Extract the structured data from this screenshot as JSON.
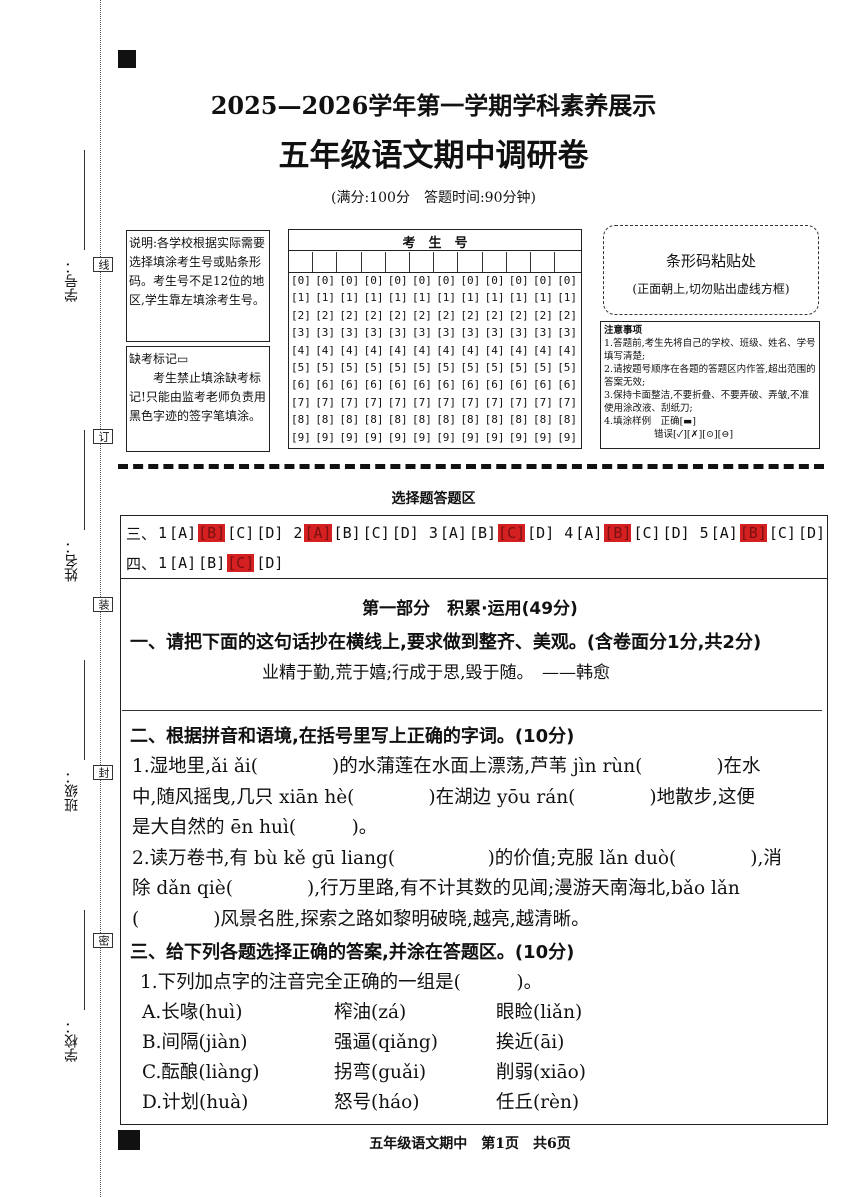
{
  "margin": {
    "labels": [
      "学号：",
      "姓名：",
      "班级：",
      "学校："
    ],
    "seal_chars": [
      "线",
      "订",
      "装",
      "封",
      "密"
    ]
  },
  "header": {
    "title": "2025—2026学年第一学期学科素养展示",
    "subtitle": "五年级语文期中调研卷",
    "score_info": "(满分:100分　答题时间:90分钟)"
  },
  "instructions": "说明:各学校根据实际需要选择填涂考生号或贴条形码。考生号不足12位的地区,学生靠左填涂考生号。",
  "exam_number": {
    "title": "考　生　号",
    "rows": [
      [
        "[0]",
        "[0]",
        "[0]",
        "[0]",
        "[0]",
        "[0]",
        "[0]",
        "[0]",
        "[0]",
        "[0]",
        "[0]",
        "[0]"
      ],
      [
        "[1]",
        "[1]",
        "[1]",
        "[1]",
        "[1]",
        "[1]",
        "[1]",
        "[1]",
        "[1]",
        "[1]",
        "[1]",
        "[1]"
      ],
      [
        "[2]",
        "[2]",
        "[2]",
        "[2]",
        "[2]",
        "[2]",
        "[2]",
        "[2]",
        "[2]",
        "[2]",
        "[2]",
        "[2]"
      ],
      [
        "[3]",
        "[3]",
        "[3]",
        "[3]",
        "[3]",
        "[3]",
        "[3]",
        "[3]",
        "[3]",
        "[3]",
        "[3]",
        "[3]"
      ],
      [
        "[4]",
        "[4]",
        "[4]",
        "[4]",
        "[4]",
        "[4]",
        "[4]",
        "[4]",
        "[4]",
        "[4]",
        "[4]",
        "[4]"
      ],
      [
        "[5]",
        "[5]",
        "[5]",
        "[5]",
        "[5]",
        "[5]",
        "[5]",
        "[5]",
        "[5]",
        "[5]",
        "[5]",
        "[5]"
      ],
      [
        "[6]",
        "[6]",
        "[6]",
        "[6]",
        "[6]",
        "[6]",
        "[6]",
        "[6]",
        "[6]",
        "[6]",
        "[6]",
        "[6]"
      ],
      [
        "[7]",
        "[7]",
        "[7]",
        "[7]",
        "[7]",
        "[7]",
        "[7]",
        "[7]",
        "[7]",
        "[7]",
        "[7]",
        "[7]"
      ],
      [
        "[8]",
        "[8]",
        "[8]",
        "[8]",
        "[8]",
        "[8]",
        "[8]",
        "[8]",
        "[8]",
        "[8]",
        "[8]",
        "[8]"
      ],
      [
        "[9]",
        "[9]",
        "[9]",
        "[9]",
        "[9]",
        "[9]",
        "[9]",
        "[9]",
        "[9]",
        "[9]",
        "[9]",
        "[9]"
      ]
    ]
  },
  "absent": {
    "title": "缺考标记▭",
    "text": "考生禁止填涂缺考标记!只能由监考老师负责用黑色字迹的签字笔填涂。"
  },
  "barcode": {
    "title": "条形码粘贴处",
    "note": "(正面朝上,切勿贴出虚线方框)"
  },
  "notice": {
    "title": "注意事项",
    "items": [
      "1.答题前,考生先将自己的学校、班级、姓名、学号填写清楚;",
      "2.请按题号顺序在各题的答题区内作答,超出范围的答案无效;",
      "3.保持卡面整洁,不要折叠、不要弄破、弄皱,不准使用涂改液、刮纸刀;",
      "4.填涂样例　正确[▬]",
      "错误[✓][✗][⊙][⊖]"
    ]
  },
  "choice_area": {
    "title": "选择题答题区",
    "rows": [
      {
        "label": "三、",
        "groups": [
          {
            "number": "1",
            "options": [
              "[A]",
              "[B]",
              "[C]",
              "[D]"
            ],
            "marked": 1
          },
          {
            "number": "2",
            "options": [
              "[A]",
              "[B]",
              "[C]",
              "[D]"
            ],
            "marked": 0
          },
          {
            "number": "3",
            "options": [
              "[A]",
              "[B]",
              "[C]",
              "[D]"
            ],
            "marked": 2
          },
          {
            "number": "4",
            "options": [
              "[A]",
              "[B]",
              "[C]",
              "[D]"
            ],
            "marked": 1
          },
          {
            "number": "5",
            "options": [
              "[A]",
              "[B]",
              "[C]",
              "[D]"
            ],
            "marked": 1
          }
        ]
      },
      {
        "label": "四、",
        "groups": [
          {
            "number": "1",
            "options": [
              "[A]",
              "[B]",
              "[C]",
              "[D]"
            ],
            "marked": 2
          }
        ]
      }
    ]
  },
  "part": "第一部分　积累·运用(49分)",
  "q1": {
    "heading": "一、请把下面的这句话抄在横线上,要求做到整齐、美观。(含卷面分1分,共2分)",
    "quote": "业精于勤,荒于嬉;行成于思,毁于随。　——韩愈"
  },
  "q2": {
    "heading": "二、根据拼音和语境,在括号里写上正确的字词。(10分)",
    "lines": [
      "1.湿地里,ǎi ǎi(　　　　)的水蒲莲在水面上漂荡,芦苇 jìn rùn(　　　　)在水",
      "中,随风摇曳,几只 xiān hè(　　　　)在湖边 yōu rán(　　　　)地散步,这便",
      "是大自然的 ēn huì(　　　)。",
      "2.读万卷书,有 bù kě gū liang(　　　　　)的价值;克服 lǎn duò(　　　　),消",
      "除 dǎn qiè(　　　　),行万里路,有不计其数的见闻;漫游天南海北,bǎo lǎn",
      "(　　　　)风景名胜,探索之路如黎明破晓,越亮,越清晰。"
    ]
  },
  "q3": {
    "heading": "三、给下列各题选择正确的答案,并涂在答题区。(10分)",
    "question": "1.下列加点字的注音完全正确的一组是(　　　)。",
    "options": [
      [
        "A.长喙(huì)",
        "榨油(zá)",
        "眼睑(liǎn)"
      ],
      [
        "B.间隔(jiàn)",
        "强逼(qiǎng)",
        "挨近(āi)"
      ],
      [
        "C.酝酿(liàng)",
        "拐弯(guǎi)",
        "削弱(xiāo)"
      ],
      [
        "D.计划(huà)",
        "怒号(háo)",
        "任丘(rèn)"
      ]
    ]
  },
  "footer": "五年级语文期中　第1页　共6页"
}
